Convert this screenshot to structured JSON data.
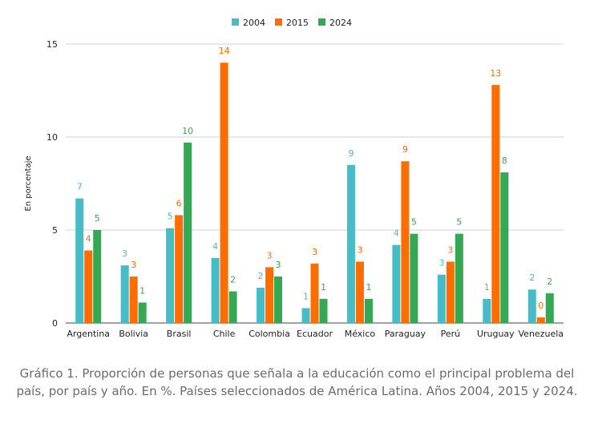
{
  "chart_data": {
    "type": "bar",
    "categories": [
      "Argentina",
      "Bolivia",
      "Brasil",
      "Chile",
      "Colombia",
      "Ecuador",
      "México",
      "Paraguay",
      "Perú",
      "Uruguay",
      "Venezuela"
    ],
    "series": [
      {
        "name": "2004",
        "color": "#46BDC6",
        "values": [
          6.7,
          3.1,
          5.1,
          3.5,
          1.9,
          0.8,
          8.5,
          4.2,
          2.6,
          1.3,
          1.8
        ],
        "labels": [
          "7",
          "3",
          "5",
          "4",
          "2",
          "1",
          "9",
          "4",
          "3",
          "1",
          "2"
        ]
      },
      {
        "name": "2015",
        "color": "#FF6D01",
        "values": [
          3.9,
          2.5,
          5.8,
          14.0,
          3.0,
          3.2,
          3.3,
          8.7,
          3.3,
          12.8,
          0.3
        ],
        "labels": [
          "4",
          "3",
          "6",
          "14",
          "3",
          "3",
          "3",
          "9",
          "3",
          "13",
          "0"
        ]
      },
      {
        "name": "2024",
        "color": "#34A853",
        "values": [
          5.0,
          1.1,
          9.7,
          1.7,
          2.5,
          1.3,
          1.3,
          4.8,
          4.8,
          8.1,
          1.6
        ],
        "labels": [
          "5",
          "1",
          "10",
          "2",
          "3",
          "1",
          "1",
          "5",
          "5",
          "8",
          "2"
        ]
      }
    ],
    "ylabel": "En porcentaje",
    "ylim": [
      0,
      15
    ],
    "yticks": [
      0,
      5,
      10,
      15
    ],
    "ytick_labels": [
      "0",
      "5",
      "10",
      "15"
    ],
    "grid": true,
    "legend_position": "top-center"
  },
  "caption": "Gráfico 1. Proporción de personas que señala a la educación como el principal problema del país, por país y año. En %. Países seleccionados de América Latina. Años 2004, 2015 y 2024."
}
